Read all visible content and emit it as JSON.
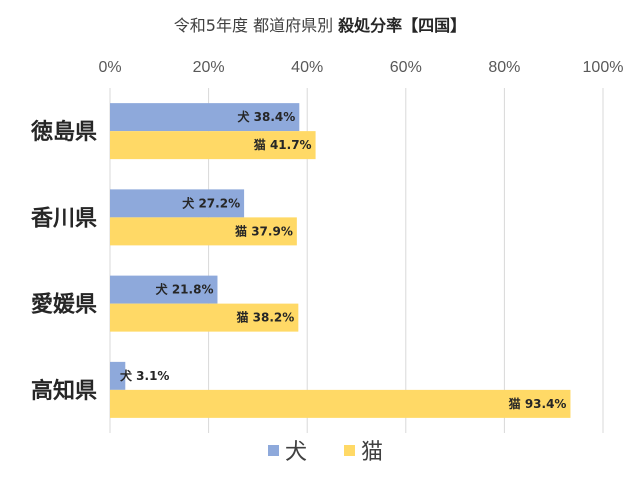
{
  "chart_data": {
    "type": "bar",
    "orientation": "horizontal",
    "title": "令和5年度 都道府県別 殺処分率【四国】",
    "title_main": "令和5年度 都道府県別",
    "title_bold": "殺処分率【四国】",
    "categories": [
      "徳島県",
      "香川県",
      "愛媛県",
      "高知県"
    ],
    "series": [
      {
        "name": "犬",
        "color": "#8EA9DB",
        "values": [
          38.4,
          27.2,
          21.8,
          3.1
        ],
        "labels": [
          "犬 38.4%",
          "犬 27.2%",
          "犬 21.8%",
          "犬 3.1%"
        ]
      },
      {
        "name": "猫",
        "color": "#FFD966",
        "values": [
          41.7,
          37.9,
          38.2,
          93.4
        ],
        "labels": [
          "猫 41.7%",
          "猫 37.9%",
          "猫 38.2%",
          "猫 93.4%"
        ]
      }
    ],
    "xlim": [
      0,
      100
    ],
    "x_ticks": [
      "0%",
      "20%",
      "40%",
      "60%",
      "80%",
      "100%"
    ],
    "x_tick_values": [
      0,
      20,
      40,
      60,
      80,
      100
    ],
    "x_axis_position": "top",
    "grid": true,
    "legend_position": "bottom"
  }
}
